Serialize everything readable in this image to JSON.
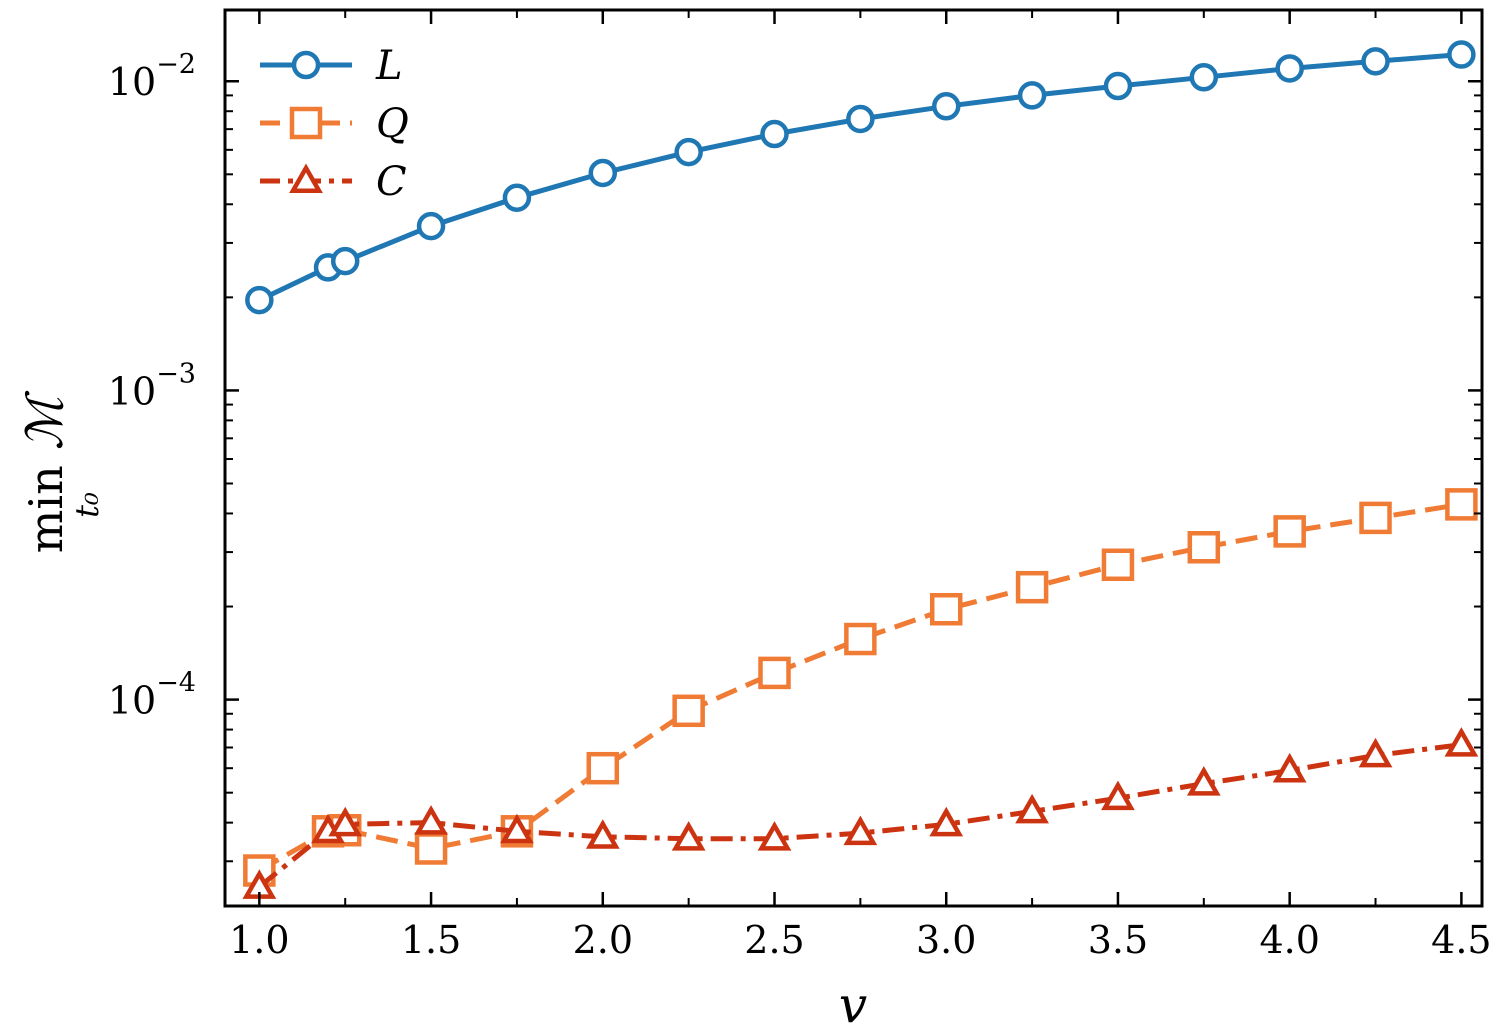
{
  "chart_data": {
    "type": "line",
    "xlabel": "v",
    "ylabel": {
      "main": "min",
      "subscript": "t₀",
      "symbol": "ℳ"
    },
    "x_scale": "linear",
    "y_scale": "log",
    "xlim": [
      0.9,
      4.56
    ],
    "ylim": [
      2.15e-05,
      0.017
    ],
    "x_ticks": [
      1.0,
      1.5,
      2.0,
      2.5,
      3.0,
      3.5,
      4.0,
      4.5
    ],
    "x_tick_labels": [
      "1.0",
      "1.5",
      "2.0",
      "2.5",
      "3.0",
      "3.5",
      "4.0",
      "4.5"
    ],
    "y_major_ticks": [
      {
        "value": 0.01,
        "base": "10",
        "exp": "−2"
      },
      {
        "value": 0.001,
        "base": "10",
        "exp": "−3"
      },
      {
        "value": 0.0001,
        "base": "10",
        "exp": "−4"
      }
    ],
    "grid": false,
    "legend_position": "top-left",
    "series": [
      {
        "name": "L",
        "color": "#1f77b4",
        "marker": "circle",
        "line_style": "solid",
        "x": [
          1.0,
          1.2,
          1.25,
          1.5,
          1.75,
          2.0,
          2.25,
          2.5,
          2.75,
          3.0,
          3.25,
          3.5,
          3.75,
          4.0,
          4.25,
          4.5
        ],
        "values": [
          0.00196,
          0.0025,
          0.00262,
          0.0034,
          0.0042,
          0.00505,
          0.0059,
          0.00675,
          0.00755,
          0.0083,
          0.009,
          0.00965,
          0.0103,
          0.011,
          0.0116,
          0.0122
        ]
      },
      {
        "name": "Q",
        "color": "#f07b34",
        "marker": "square",
        "line_style": "dashed",
        "x": [
          1.0,
          1.2,
          1.25,
          1.5,
          1.75,
          2.0,
          2.25,
          2.5,
          2.75,
          3.0,
          3.25,
          3.5,
          3.75,
          4.0,
          4.25,
          4.5
        ],
        "values": [
          2.8e-05,
          3.75e-05,
          3.78e-05,
          3.3e-05,
          3.75e-05,
          6e-05,
          9.2e-05,
          0.000122,
          0.000157,
          0.000196,
          0.000231,
          0.000273,
          0.000311,
          0.00035,
          0.000387,
          0.000428
        ]
      },
      {
        "name": "C",
        "color": "#cc3311",
        "marker": "triangle",
        "line_style": "dashdot",
        "x": [
          1.0,
          1.2,
          1.25,
          1.5,
          1.75,
          2.0,
          2.25,
          2.5,
          2.75,
          3.0,
          3.25,
          3.5,
          3.75,
          4.0,
          4.25,
          4.5
        ],
        "values": [
          2.48e-05,
          3.75e-05,
          3.95e-05,
          4e-05,
          3.75e-05,
          3.6e-05,
          3.55e-05,
          3.55e-05,
          3.7e-05,
          3.95e-05,
          4.35e-05,
          4.8e-05,
          5.35e-05,
          5.9e-05,
          6.6e-05,
          7.15e-05
        ]
      }
    ]
  }
}
